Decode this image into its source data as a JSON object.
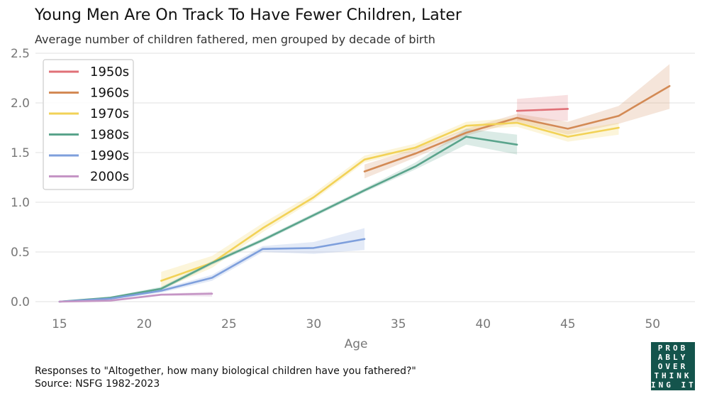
{
  "title": "Young Men Are On Track To Have Fewer Children, Later",
  "subtitle": "Average number of children fathered, men grouped by decade of birth",
  "footer": {
    "note": "Responses to \"Altogether, how many biological children have you fathered?\"",
    "source": "Source: NSFG 1982-2023"
  },
  "logo": {
    "lines": [
      "PROB",
      "ABLY",
      "OVER",
      "THINK",
      "ING IT"
    ],
    "color": "#14544c"
  },
  "chart_data": {
    "type": "line",
    "xlabel": "Age",
    "ylabel": "",
    "xlim": [
      14,
      52.5
    ],
    "ylim": [
      -0.05,
      2.55
    ],
    "xticks": [
      15,
      20,
      25,
      30,
      35,
      40,
      45,
      50
    ],
    "yticks": [
      0.0,
      0.5,
      1.0,
      1.5,
      2.0,
      2.5
    ],
    "ytick_labels": [
      "0.0",
      "0.5",
      "1.0",
      "1.5",
      "2.0",
      "2.5"
    ],
    "grid": "horizontal",
    "legend_position": "top-left",
    "series": [
      {
        "name": "1950s",
        "color": "#e07077",
        "x": [
          42,
          45
        ],
        "y": [
          1.92,
          1.94
        ],
        "lower": [
          1.82,
          1.82
        ],
        "upper": [
          2.04,
          2.08
        ]
      },
      {
        "name": "1960s",
        "color": "#d38a55",
        "x": [
          33,
          36,
          39,
          42,
          45,
          48,
          51
        ],
        "y": [
          1.31,
          1.49,
          1.7,
          1.85,
          1.74,
          1.87,
          2.17
        ],
        "lower": [
          1.24,
          1.45,
          1.67,
          1.81,
          1.68,
          1.79,
          1.94
        ],
        "upper": [
          1.38,
          1.54,
          1.74,
          1.89,
          1.81,
          1.97,
          2.39
        ]
      },
      {
        "name": "1970s",
        "color": "#f2d257",
        "x": [
          21,
          24,
          27,
          30,
          33,
          36,
          39,
          42,
          45,
          48
        ],
        "y": [
          0.21,
          0.39,
          0.74,
          1.05,
          1.43,
          1.55,
          1.77,
          1.8,
          1.66,
          1.75
        ],
        "lower": [
          0.12,
          0.34,
          0.7,
          1.02,
          1.4,
          1.52,
          1.73,
          1.76,
          1.61,
          1.68
        ],
        "upper": [
          0.3,
          0.46,
          0.79,
          1.09,
          1.47,
          1.59,
          1.81,
          1.85,
          1.72,
          1.8
        ]
      },
      {
        "name": "1980s",
        "color": "#5aa48c",
        "x": [
          15,
          18,
          21,
          24,
          27,
          30,
          33,
          36,
          39,
          42
        ],
        "y": [
          0.0,
          0.04,
          0.13,
          0.39,
          0.62,
          0.87,
          1.12,
          1.36,
          1.66,
          1.58
        ],
        "lower": [
          0.0,
          0.03,
          0.11,
          0.37,
          0.6,
          0.85,
          1.1,
          1.33,
          1.58,
          1.48
        ],
        "upper": [
          0.0,
          0.05,
          0.15,
          0.41,
          0.64,
          0.89,
          1.14,
          1.4,
          1.74,
          1.68
        ]
      },
      {
        "name": "1990s",
        "color": "#7e9fdc",
        "x": [
          15,
          18,
          21,
          24,
          27,
          30,
          33
        ],
        "y": [
          0.0,
          0.03,
          0.11,
          0.24,
          0.53,
          0.54,
          0.63
        ],
        "lower": [
          0.0,
          0.02,
          0.09,
          0.21,
          0.5,
          0.48,
          0.52
        ],
        "upper": [
          0.0,
          0.04,
          0.13,
          0.27,
          0.56,
          0.6,
          0.74
        ]
      },
      {
        "name": "2000s",
        "color": "#c595c5",
        "x": [
          15,
          18,
          21,
          24
        ],
        "y": [
          0.0,
          0.01,
          0.07,
          0.08
        ],
        "lower": [
          0.0,
          0.0,
          0.06,
          0.05
        ],
        "upper": [
          0.0,
          0.02,
          0.08,
          0.1
        ]
      }
    ]
  }
}
